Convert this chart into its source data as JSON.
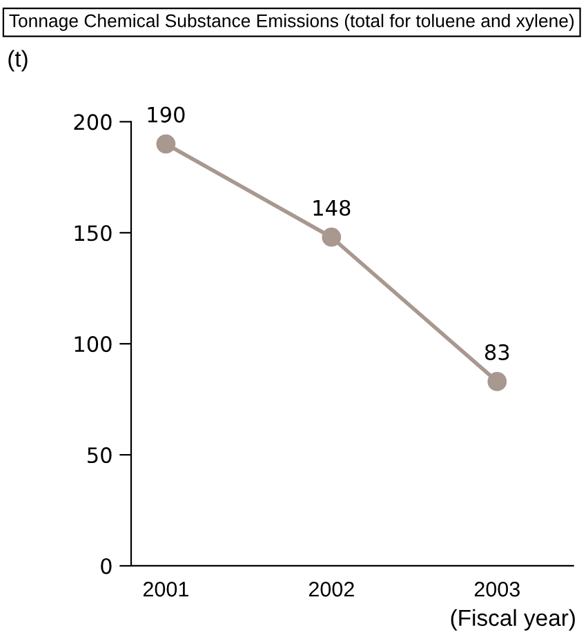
{
  "chart_data": {
    "type": "line",
    "title": "Tonnage Chemical Substance Emissions (total for toluene and xylene)",
    "ylabel": "(t)",
    "xlabel": "(Fiscal year)",
    "categories": [
      "2001",
      "2002",
      "2003"
    ],
    "series": [
      {
        "color": "#a89890",
        "values": [
          190,
          148,
          83
        ]
      }
    ],
    "ylim": [
      0,
      200
    ],
    "yticks": [
      0,
      50,
      100,
      150,
      200
    ],
    "marker": "circle",
    "line_style": "solid",
    "data_labels": true
  }
}
